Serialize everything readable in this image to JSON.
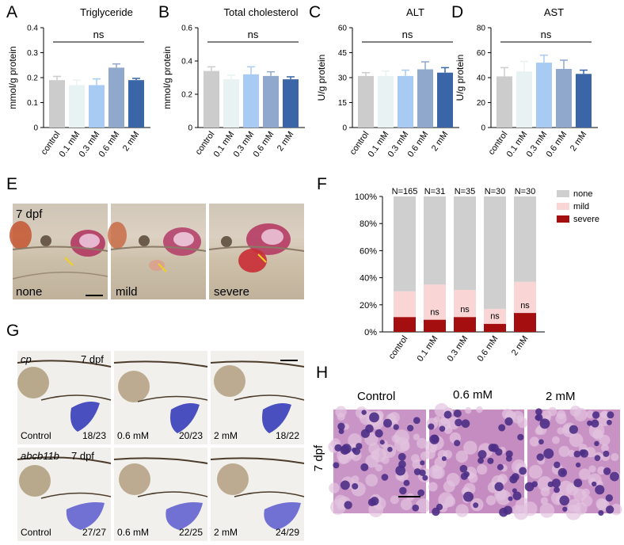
{
  "colors": {
    "control": "#cccccc",
    "c01": "#e9f2f2",
    "c03": "#a8cbf4",
    "c06": "#8fa8cc",
    "c2": "#3a66a8",
    "none": "#cfcfcf",
    "mild": "#f9d5d5",
    "severe": "#a50e0e",
    "stain": "#4a4fc0",
    "he_bg": "#c88fc3"
  },
  "panel_letters": {
    "a": "A",
    "b": "B",
    "c": "C",
    "d": "D",
    "e": "E",
    "f": "F",
    "g": "G",
    "h": "H"
  },
  "chart_data": [
    {
      "id": "A",
      "type": "bar",
      "title": "Triglyceride",
      "ylabel": "mmol/g protein",
      "categories": [
        "control",
        "0.1 mM",
        "0.3 mM",
        "0.6 mM",
        "2 mM"
      ],
      "values": [
        0.19,
        0.17,
        0.17,
        0.24,
        0.19
      ],
      "errors": [
        0.015,
        0.02,
        0.025,
        0.015,
        0.007
      ],
      "ylim": [
        0,
        0.4
      ],
      "yticks": [
        "0",
        "0.1",
        "0.2",
        "0.3",
        "0.4"
      ],
      "significance": "ns"
    },
    {
      "id": "B",
      "type": "bar",
      "title": "Total cholesterol",
      "ylabel": "mmol/g protein",
      "categories": [
        "control",
        "0.1 mM",
        "0.3 mM",
        "0.6 mM",
        "2 mM"
      ],
      "values": [
        0.34,
        0.29,
        0.32,
        0.31,
        0.29
      ],
      "errors": [
        0.025,
        0.025,
        0.045,
        0.025,
        0.015
      ],
      "ylim": [
        0,
        0.6
      ],
      "yticks": [
        "0",
        "0.2",
        "0.4",
        "0.6"
      ],
      "significance": "ns"
    },
    {
      "id": "C",
      "type": "bar",
      "title": "ALT",
      "ylabel": "U/g protein",
      "categories": [
        "control",
        "0.1 mM",
        "0.3 mM",
        "0.6 mM",
        "2 mM"
      ],
      "values": [
        31,
        31,
        31,
        35,
        33
      ],
      "errors": [
        2,
        3,
        3.5,
        4.5,
        3
      ],
      "ylim": [
        0,
        60
      ],
      "yticks": [
        "0",
        "15",
        "30",
        "45",
        "60"
      ],
      "significance": "ns"
    },
    {
      "id": "D",
      "type": "bar",
      "title": "AST",
      "ylabel": "U/g protein",
      "categories": [
        "control",
        "0.1 mM",
        "0.3 mM",
        "0.6 mM",
        "2 mM"
      ],
      "values": [
        41,
        45,
        52,
        47,
        43
      ],
      "errors": [
        7,
        8,
        6,
        7,
        3
      ],
      "ylim": [
        0,
        80
      ],
      "yticks": [
        "0",
        "20",
        "40",
        "60",
        "80"
      ],
      "significance": "ns"
    },
    {
      "id": "F",
      "type": "bar",
      "stacked": true,
      "categories": [
        "control",
        "0.1 mM",
        "0.3 mM",
        "0.6 mM",
        "2 mM"
      ],
      "n_labels": [
        "N=165",
        "N=31",
        "N=35",
        "N=30",
        "N=30"
      ],
      "series": [
        {
          "name": "severe",
          "values": [
            11,
            9,
            11,
            6,
            14
          ]
        },
        {
          "name": "mild",
          "values": [
            19,
            26,
            20,
            11,
            23
          ]
        },
        {
          "name": "none",
          "values": [
            70,
            65,
            69,
            83,
            63
          ]
        }
      ],
      "ylim": [
        0,
        100
      ],
      "yticks": [
        "0%",
        "20%",
        "40%",
        "60%",
        "80%",
        "100%"
      ],
      "annotations": [
        "",
        "ns",
        "ns",
        "ns",
        "ns"
      ],
      "legend": [
        "none",
        "mild",
        "severe"
      ]
    }
  ],
  "panel_e": {
    "stage": "7 dpf",
    "labels": [
      "none",
      "mild",
      "severe"
    ]
  },
  "panel_g": {
    "row1_gene": "cp",
    "row2_gene": "abcb11b",
    "stage": "7 dpf",
    "row1": [
      {
        "cond": "Control",
        "ratio": "18/23"
      },
      {
        "cond": "0.6 mM",
        "ratio": "20/23"
      },
      {
        "cond": "2 mM",
        "ratio": "18/22"
      }
    ],
    "row2": [
      {
        "cond": "Control",
        "ratio": "27/27"
      },
      {
        "cond": "0.6 mM",
        "ratio": "22/25"
      },
      {
        "cond": "2 mM",
        "ratio": "24/29"
      }
    ]
  },
  "panel_h": {
    "stage": "7 dpf",
    "titles": [
      "Control",
      "0.6 mM",
      "2 mM"
    ]
  }
}
